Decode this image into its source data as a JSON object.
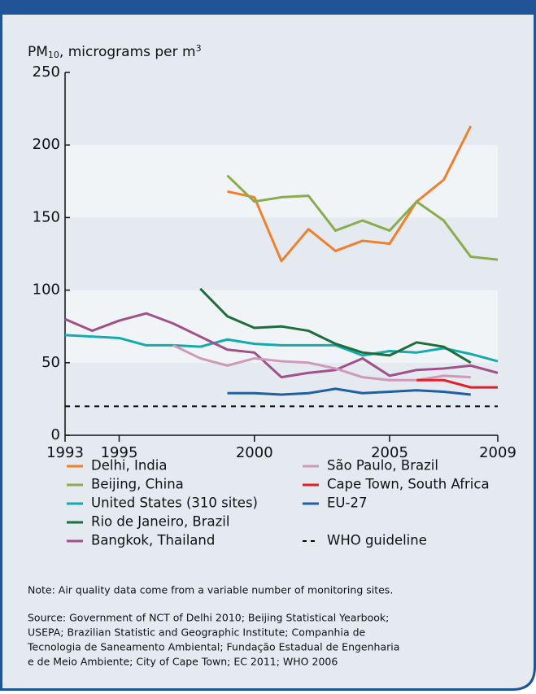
{
  "chart_data": {
    "type": "line",
    "y_label": {
      "base": "PM",
      "sub": "10",
      "text": ", micrograms per m",
      "sup": "3"
    },
    "x": [
      1993,
      1994,
      1995,
      1996,
      1997,
      1998,
      1999,
      2000,
      2001,
      2002,
      2003,
      2004,
      2005,
      2006,
      2007,
      2008,
      2009
    ],
    "xlim": [
      1993,
      2009
    ],
    "xticks": [
      1993,
      1995,
      2000,
      2005,
      2009
    ],
    "ylim": [
      0,
      250
    ],
    "yticks": [
      0,
      50,
      100,
      150,
      200,
      250
    ],
    "series": [
      {
        "name": "Delhi, India",
        "color": "#f07f2e",
        "values": [
          null,
          null,
          null,
          null,
          null,
          null,
          168,
          164,
          120,
          142,
          127,
          134,
          132,
          161,
          176,
          213,
          null
        ]
      },
      {
        "name": "Beijing, China",
        "color": "#8aac4e",
        "values": [
          null,
          null,
          null,
          null,
          null,
          null,
          179,
          161,
          164,
          165,
          141,
          148,
          141,
          161,
          148,
          123,
          121
        ]
      },
      {
        "name": "United States (310 sites)",
        "color": "#14aab0",
        "values": [
          69,
          68,
          67,
          62,
          62,
          61,
          66,
          63,
          62,
          62,
          62,
          55,
          58,
          57,
          60,
          56,
          51
        ]
      },
      {
        "name": "Rio de Janeiro, Brazil",
        "color": "#1d6e3a",
        "values": [
          null,
          null,
          null,
          null,
          null,
          101,
          82,
          74,
          75,
          72,
          63,
          57,
          55,
          64,
          61,
          50,
          null
        ]
      },
      {
        "name": "Bangkok, Thailand",
        "color": "#a0508a",
        "values": [
          80,
          72,
          79,
          84,
          77,
          68,
          59,
          57,
          40,
          43,
          45,
          53,
          41,
          45,
          46,
          48,
          43
        ]
      },
      {
        "name": "São Paulo, Brazil",
        "color": "#cf9ab9",
        "values": [
          null,
          null,
          null,
          null,
          62,
          53,
          48,
          53,
          51,
          50,
          46,
          40,
          38,
          38,
          41,
          40,
          null
        ]
      },
      {
        "name": "Cape Town, South Africa",
        "color": "#e0202a",
        "values": [
          null,
          null,
          null,
          null,
          null,
          null,
          null,
          null,
          null,
          null,
          null,
          null,
          null,
          38,
          38,
          33,
          33
        ]
      },
      {
        "name": "EU-27",
        "color": "#1f5fa3",
        "values": [
          null,
          null,
          null,
          null,
          null,
          null,
          29,
          29,
          28,
          29,
          32,
          29,
          30,
          31,
          30,
          28,
          null
        ]
      },
      {
        "name": "WHO guideline",
        "color": "#000000",
        "dashed": true,
        "values": [
          20,
          20,
          20,
          20,
          20,
          20,
          20,
          20,
          20,
          20,
          20,
          20,
          20,
          20,
          20,
          20,
          20
        ]
      }
    ],
    "note": "Note: Air quality data come from a variable number of monitoring sites.",
    "source": [
      "Source: Government of NCT of Delhi 2010; Beijing Statistical Yearbook;",
      "USEPA; Brazilian Statistic and Geographic Institute; Companhia de",
      "Tecnologia de Saneamento Ambiental; Fundação Estadual de Engenharia",
      "e de Meio Ambiente; City of Cape Town; EC 2011; WHO 2006"
    ]
  }
}
